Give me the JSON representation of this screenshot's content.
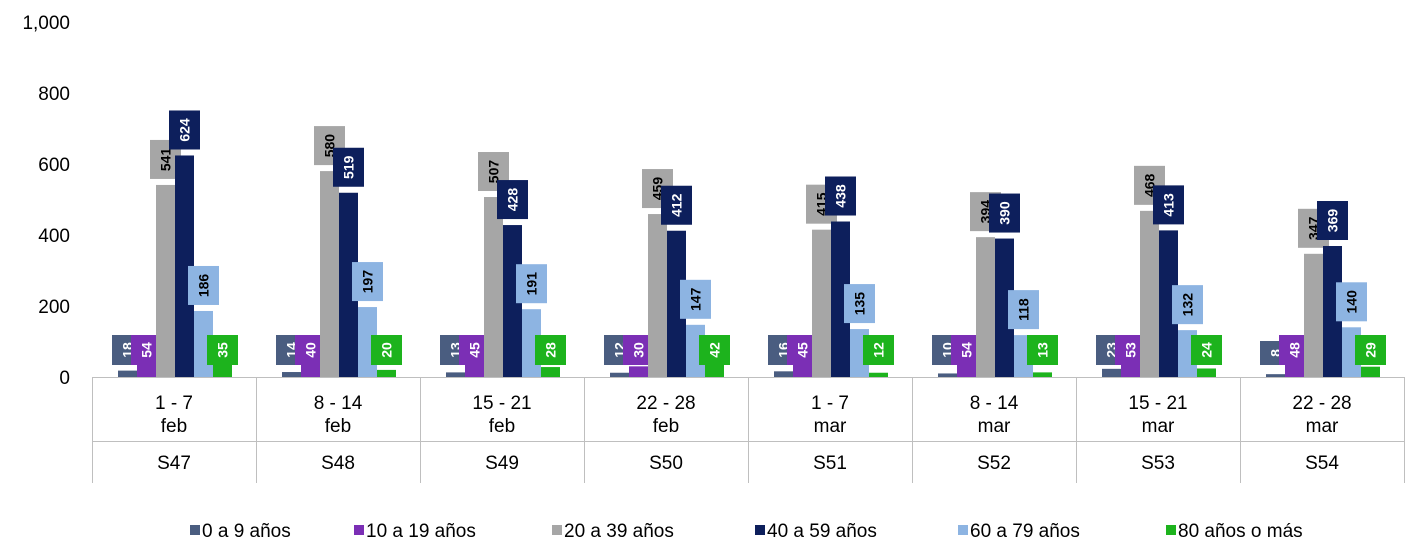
{
  "chart_data": {
    "type": "bar",
    "y_ticks": [
      "0",
      "200",
      "400",
      "600",
      "800",
      "1,000"
    ],
    "ylim": [
      0,
      1000
    ],
    "grid": false,
    "legend_position": "bottom",
    "categories": [
      {
        "range": "1 - 7",
        "month": "feb",
        "week": "S47"
      },
      {
        "range": "8 - 14",
        "month": "feb",
        "week": "S48"
      },
      {
        "range": "15 - 21",
        "month": "feb",
        "week": "S49"
      },
      {
        "range": "22 - 28",
        "month": "feb",
        "week": "S50"
      },
      {
        "range": "1 - 7",
        "month": "mar",
        "week": "S51"
      },
      {
        "range": "8 - 14",
        "month": "mar",
        "week": "S52"
      },
      {
        "range": "15 - 21",
        "month": "mar",
        "week": "S53"
      },
      {
        "range": "22 - 28",
        "month": "mar",
        "week": "S54"
      }
    ],
    "series": [
      {
        "name": "0 a 9 años",
        "color": "#4A5D80",
        "values": [
          18,
          14,
          13,
          12,
          16,
          10,
          23,
          8
        ]
      },
      {
        "name": "10 a 19 años",
        "color": "#7B2FB5",
        "values": [
          54,
          40,
          45,
          30,
          45,
          54,
          53,
          48
        ]
      },
      {
        "name": "20 a 39 años",
        "color": "#A6A6A6",
        "values": [
          541,
          580,
          507,
          459,
          415,
          394,
          468,
          347
        ]
      },
      {
        "name": "40 a 59 años",
        "color": "#0D1F5C",
        "values": [
          624,
          519,
          428,
          412,
          438,
          390,
          413,
          369
        ]
      },
      {
        "name": "60 a 79 años",
        "color": "#8DB4E2",
        "values": [
          186,
          197,
          191,
          147,
          135,
          118,
          132,
          140
        ]
      },
      {
        "name": "80 años o más",
        "color": "#1DB31D",
        "values": [
          35,
          20,
          28,
          42,
          12,
          13,
          24,
          29
        ]
      }
    ]
  }
}
